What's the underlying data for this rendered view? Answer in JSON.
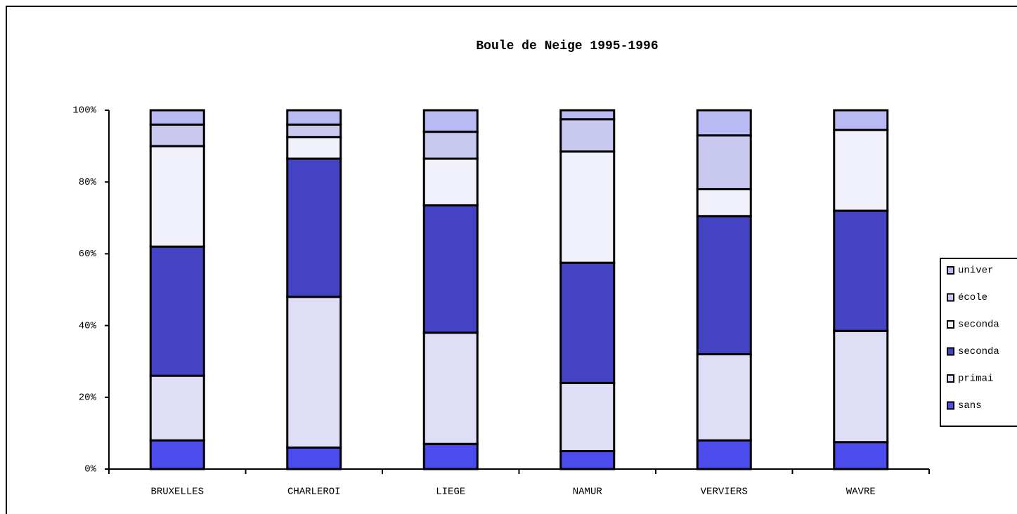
{
  "chart_data": {
    "type": "stacked_bar",
    "title": "Boule de Neige 1995-1996",
    "categories": [
      "BRUXELLES",
      "CHARLEROI",
      "LIEGE",
      "NAMUR",
      "VERVIERS",
      "WAVRE"
    ],
    "series": [
      {
        "name": "sans",
        "color": "#4b4bee",
        "values": [
          8,
          6,
          7,
          5,
          8,
          7.5
        ]
      },
      {
        "name": "primai",
        "color": "#dedef7",
        "values": [
          18,
          42,
          31,
          19,
          24,
          31
        ]
      },
      {
        "name": "seconda",
        "color": "#4343c4",
        "values": [
          36,
          38.5,
          35.5,
          33.5,
          38.5,
          33.5
        ]
      },
      {
        "name": "seconda",
        "color": "#f1f1fc",
        "values": [
          28,
          6,
          13,
          31,
          7.5,
          22.5
        ]
      },
      {
        "name": "école",
        "color": "#c9c9f0",
        "values": [
          6,
          3.5,
          7.5,
          9,
          15,
          0
        ]
      },
      {
        "name": "univer",
        "color": "#b9b9f4",
        "values": [
          4,
          4,
          6,
          2.5,
          7,
          5.5
        ]
      }
    ],
    "ylim": [
      0,
      100
    ],
    "yticks": [
      {
        "value": 0,
        "label": "0%"
      },
      {
        "value": 20,
        "label": "20%"
      },
      {
        "value": 40,
        "label": "40%"
      },
      {
        "value": 60,
        "label": "60%"
      },
      {
        "value": 80,
        "label": "80%"
      },
      {
        "value": 100,
        "label": "100%"
      }
    ],
    "legend": "right"
  }
}
